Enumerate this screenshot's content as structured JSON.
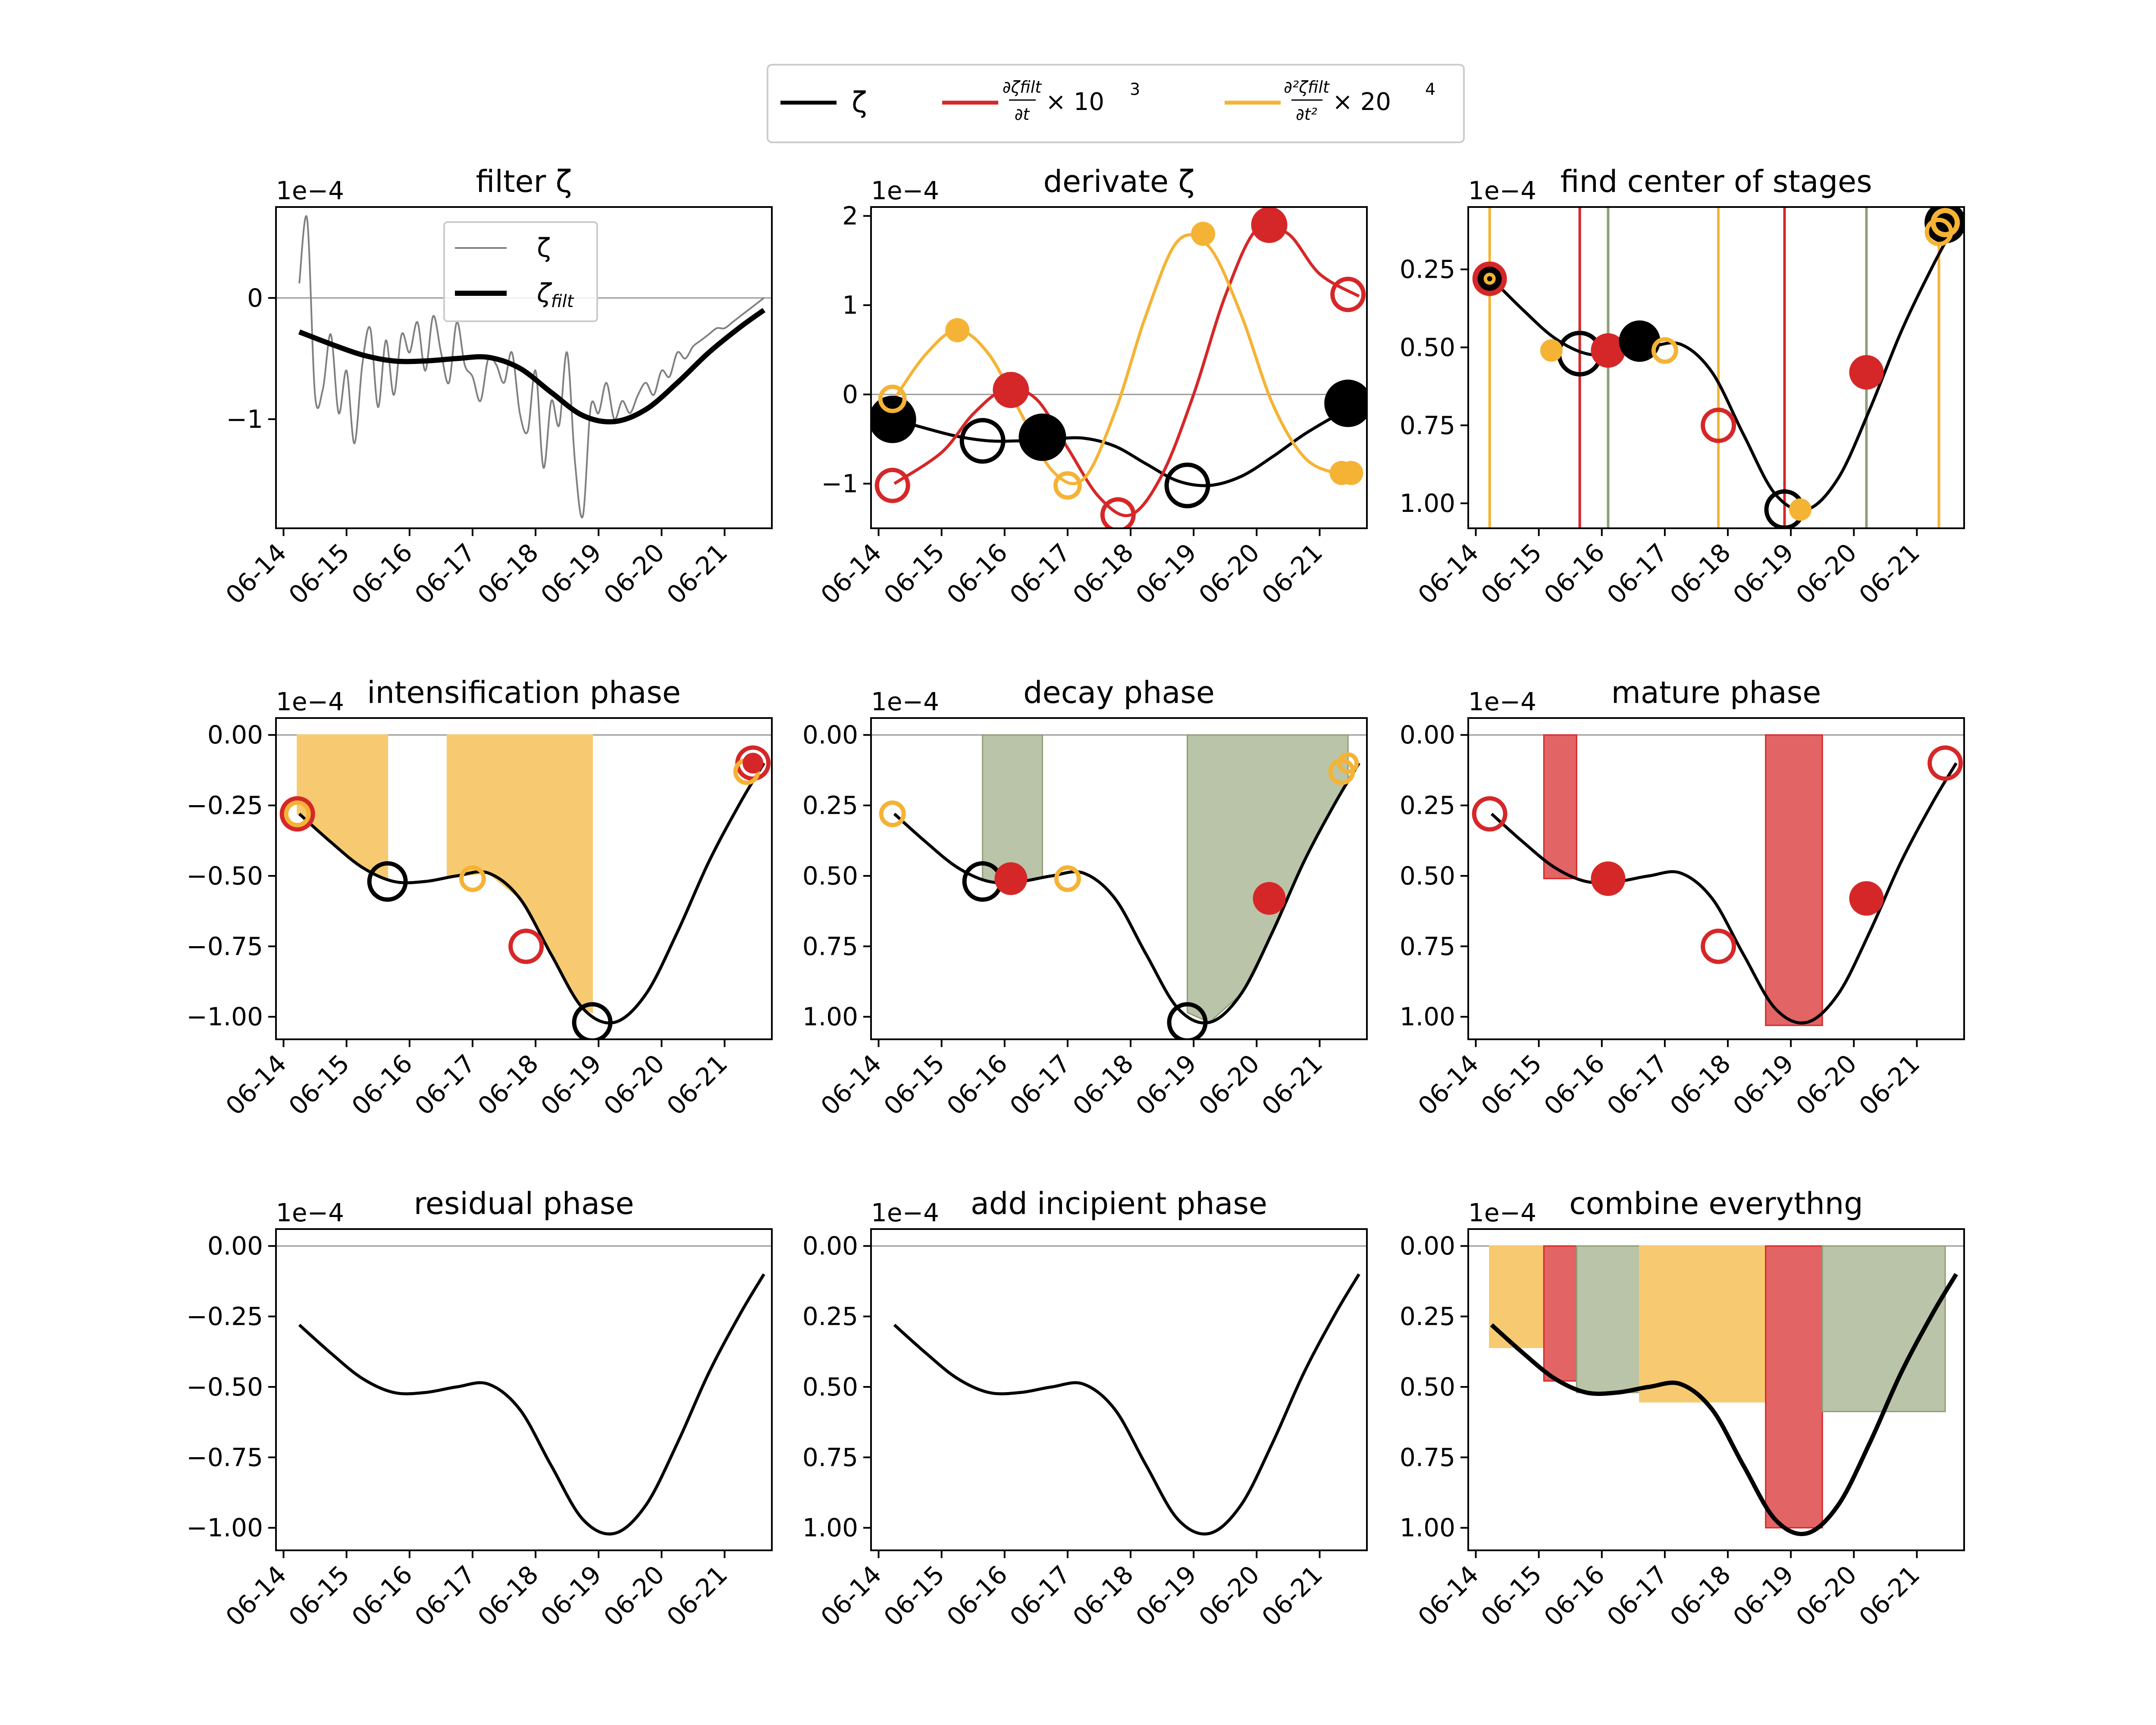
{
  "figure": {
    "legend": [
      {
        "name": "ζ",
        "color": "#000000",
        "label_parts": {
          "main": "ζ"
        }
      },
      {
        "name": "∂ζfilt/∂t × 10^3",
        "color": "#d62728",
        "label_parts": {
          "num": "∂ζfilt",
          "den": "∂t",
          "suffix": "× 10",
          "sup": "3"
        }
      },
      {
        "name": "∂²ζfilt/∂t² × 20^4",
        "color": "#f5b335",
        "label_parts": {
          "num": "∂²ζfilt",
          "den": "∂t²",
          "suffix": "× 20",
          "sup": "4"
        }
      }
    ],
    "colors": {
      "zeta": "#000000",
      "first_derivative": "#d62728",
      "second_derivative": "#f5b335",
      "decay_fill": "#b9c4a8",
      "decay_line": "#8f9e78",
      "mature_fill": "#e26464",
      "intens_fill": "#f7ca72",
      "raw": "#808080",
      "zero_line": "#999999"
    },
    "date_ticks": [
      "06-14",
      "06-15",
      "06-16",
      "06-17",
      "06-18",
      "06-19",
      "06-20",
      "06-21"
    ],
    "y_offset_label": "1e−4"
  },
  "chart_data": [
    {
      "type": "line",
      "title": "filter ζ",
      "ylim": [
        -1.9,
        0.75
      ],
      "yticks": [
        0,
        -1
      ],
      "ytick_labels": [
        "0",
        "−1"
      ],
      "legend": [
        "ζ",
        "ζfilt"
      ],
      "series": [
        {
          "name": "ζ",
          "x": [
            "06-14 06:00",
            "06-14 09:00",
            "06-14 12:00",
            "06-14 15:00",
            "06-14 18:00",
            "06-14 21:00",
            "06-15 00:00",
            "06-15 03:00",
            "06-15 06:00",
            "06-15 09:00",
            "06-15 12:00",
            "06-15 15:00",
            "06-15 18:00",
            "06-15 21:00",
            "06-16 00:00",
            "06-16 03:00",
            "06-16 06:00",
            "06-16 09:00",
            "06-16 12:00",
            "06-16 15:00",
            "06-16 18:00",
            "06-16 21:00",
            "06-17 00:00",
            "06-17 03:00",
            "06-17 06:00",
            "06-17 09:00",
            "06-17 12:00",
            "06-17 15:00",
            "06-17 18:00",
            "06-17 21:00",
            "06-18 00:00",
            "06-18 03:00",
            "06-18 06:00",
            "06-18 09:00",
            "06-18 12:00",
            "06-18 15:00",
            "06-18 18:00",
            "06-18 21:00",
            "06-19 00:00",
            "06-19 03:00",
            "06-19 06:00",
            "06-19 09:00",
            "06-19 12:00",
            "06-19 15:00",
            "06-19 18:00",
            "06-19 21:00",
            "06-20 00:00",
            "06-20 03:00",
            "06-20 06:00",
            "06-20 09:00",
            "06-20 12:00",
            "06-20 15:00",
            "06-20 18:00",
            "06-20 21:00",
            "06-21 00:00",
            "06-21 03:00",
            "06-21 06:00",
            "06-21 09:00",
            "06-21 12:00",
            "06-21 15:00"
          ],
          "y": [
            0.12,
            0.65,
            -0.8,
            -0.75,
            -0.3,
            -0.95,
            -0.6,
            -1.2,
            -0.55,
            -0.25,
            -0.9,
            -0.35,
            -0.8,
            -0.3,
            -0.45,
            -0.2,
            -0.6,
            -0.15,
            -0.45,
            -0.7,
            -0.2,
            -0.55,
            -0.65,
            -0.85,
            -0.5,
            -0.55,
            -0.7,
            -0.45,
            -0.95,
            -1.1,
            -0.6,
            -1.4,
            -0.85,
            -1.05,
            -0.45,
            -1.35,
            -1.8,
            -0.9,
            -0.95,
            -0.7,
            -1.0,
            -0.85,
            -0.95,
            -0.8,
            -0.7,
            -0.8,
            -0.6,
            -0.65,
            -0.45,
            -0.5,
            -0.4,
            -0.35,
            -0.3,
            -0.25,
            -0.25,
            -0.2,
            -0.15,
            -0.1,
            -0.05,
            0.0
          ]
        },
        {
          "name": "ζfilt",
          "x": [
            "06-14 06:00",
            "06-14 18:00",
            "06-15 06:00",
            "06-15 18:00",
            "06-16 06:00",
            "06-16 18:00",
            "06-17 06:00",
            "06-17 18:00",
            "06-18 06:00",
            "06-18 18:00",
            "06-19 06:00",
            "06-19 18:00",
            "06-20 06:00",
            "06-20 18:00",
            "06-21 06:00",
            "06-21 15:00"
          ],
          "y": [
            -0.28,
            -0.38,
            -0.47,
            -0.52,
            -0.52,
            -0.5,
            -0.49,
            -0.58,
            -0.78,
            -0.97,
            -1.02,
            -0.92,
            -0.7,
            -0.45,
            -0.24,
            -0.1
          ]
        }
      ]
    },
    {
      "type": "line",
      "title": "derivate ζ",
      "ylim": [
        -1.5,
        2.1
      ],
      "yticks": [
        2,
        1,
        0,
        -1
      ],
      "ytick_labels": [
        "2",
        "1",
        "0",
        "−1"
      ],
      "series": [
        {
          "name": "ζ",
          "x": [
            "06-14 06:00",
            "06-14 18:00",
            "06-15 06:00",
            "06-15 18:00",
            "06-16 06:00",
            "06-16 18:00",
            "06-17 06:00",
            "06-17 18:00",
            "06-18 06:00",
            "06-18 18:00",
            "06-19 06:00",
            "06-19 18:00",
            "06-20 06:00",
            "06-20 18:00",
            "06-21 06:00",
            "06-21 15:00"
          ],
          "y": [
            -0.28,
            -0.38,
            -0.47,
            -0.52,
            -0.52,
            -0.5,
            -0.49,
            -0.58,
            -0.78,
            -0.97,
            -1.02,
            -0.92,
            -0.7,
            -0.45,
            -0.24,
            -0.1
          ]
        },
        {
          "name": "∂ζfilt/∂t × 10^3",
          "x": [
            "06-14 06:00",
            "06-15 00:00",
            "06-15 12:00",
            "06-16 00:00",
            "06-16 12:00",
            "06-17 00:00",
            "06-17 12:00",
            "06-18 00:00",
            "06-18 12:00",
            "06-19 00:00",
            "06-19 12:00",
            "06-20 00:00",
            "06-20 12:00",
            "06-21 00:00",
            "06-21 15:00"
          ],
          "y": [
            -1.0,
            -0.65,
            -0.22,
            0.05,
            -0.05,
            -0.6,
            -1.15,
            -1.35,
            -0.9,
            0.0,
            1.1,
            1.85,
            1.8,
            1.35,
            1.1
          ]
        },
        {
          "name": "∂²ζfilt/∂t² × 20^4",
          "x": [
            "06-14 06:00",
            "06-14 18:00",
            "06-15 06:00",
            "06-15 18:00",
            "06-16 06:00",
            "06-16 18:00",
            "06-17 06:00",
            "06-17 18:00",
            "06-18 06:00",
            "06-18 18:00",
            "06-19 06:00",
            "06-19 18:00",
            "06-20 06:00",
            "06-20 18:00",
            "06-21 06:00",
            "06-21 15:00"
          ],
          "y": [
            -0.05,
            0.45,
            0.72,
            0.45,
            -0.2,
            -0.85,
            -0.95,
            -0.2,
            0.9,
            1.72,
            1.65,
            0.9,
            -0.1,
            -0.7,
            -0.88,
            -0.88
          ]
        }
      ]
    },
    {
      "type": "line",
      "title": "find center of stages",
      "ylim": [
        -1.08,
        -0.05
      ],
      "yticks": [
        -0.25,
        -0.5,
        -0.75,
        -1.0
      ],
      "ytick_labels": [
        "0.25",
        "0.50",
        "0.75",
        "1.00"
      ]
    },
    {
      "type": "area",
      "title": "intensification phase",
      "ylim": [
        -1.08,
        0.06
      ],
      "yticks": [
        0.0,
        -0.25,
        -0.5,
        -0.75,
        -1.0
      ],
      "ytick_labels": [
        "0.00",
        "−0.25",
        "−0.50",
        "−0.75",
        "−1.00"
      ]
    },
    {
      "type": "area",
      "title": "decay phase",
      "ylim": [
        -1.08,
        0.06
      ],
      "yticks": [
        0.0,
        -0.25,
        -0.5,
        -0.75,
        -1.0
      ],
      "ytick_labels": [
        "0.00",
        "0.25",
        "0.50",
        "0.75",
        "1.00"
      ]
    },
    {
      "type": "area",
      "title": "mature phase",
      "ylim": [
        -1.08,
        0.06
      ],
      "yticks": [
        0.0,
        -0.25,
        -0.5,
        -0.75,
        -1.0
      ],
      "ytick_labels": [
        "0.00",
        "0.25",
        "0.50",
        "0.75",
        "1.00"
      ]
    },
    {
      "type": "line",
      "title": "residual phase",
      "ylim": [
        -1.08,
        0.06
      ],
      "yticks": [
        0.0,
        -0.25,
        -0.5,
        -0.75,
        -1.0
      ],
      "ytick_labels": [
        "0.00",
        "−0.25",
        "−0.50",
        "−0.75",
        "−1.00"
      ]
    },
    {
      "type": "line",
      "title": "add incipient phase",
      "ylim": [
        -1.08,
        0.06
      ],
      "yticks": [
        0.0,
        -0.25,
        -0.5,
        -0.75,
        -1.0
      ],
      "ytick_labels": [
        "0.00",
        "0.25",
        "0.50",
        "0.75",
        "1.00"
      ]
    },
    {
      "type": "area",
      "title": "combine everythng",
      "ylim": [
        -1.08,
        0.06
      ],
      "yticks": [
        0.0,
        -0.25,
        -0.5,
        -0.75,
        -1.0
      ],
      "ytick_labels": [
        "0.00",
        "0.25",
        "0.50",
        "0.75",
        "1.00"
      ]
    }
  ]
}
